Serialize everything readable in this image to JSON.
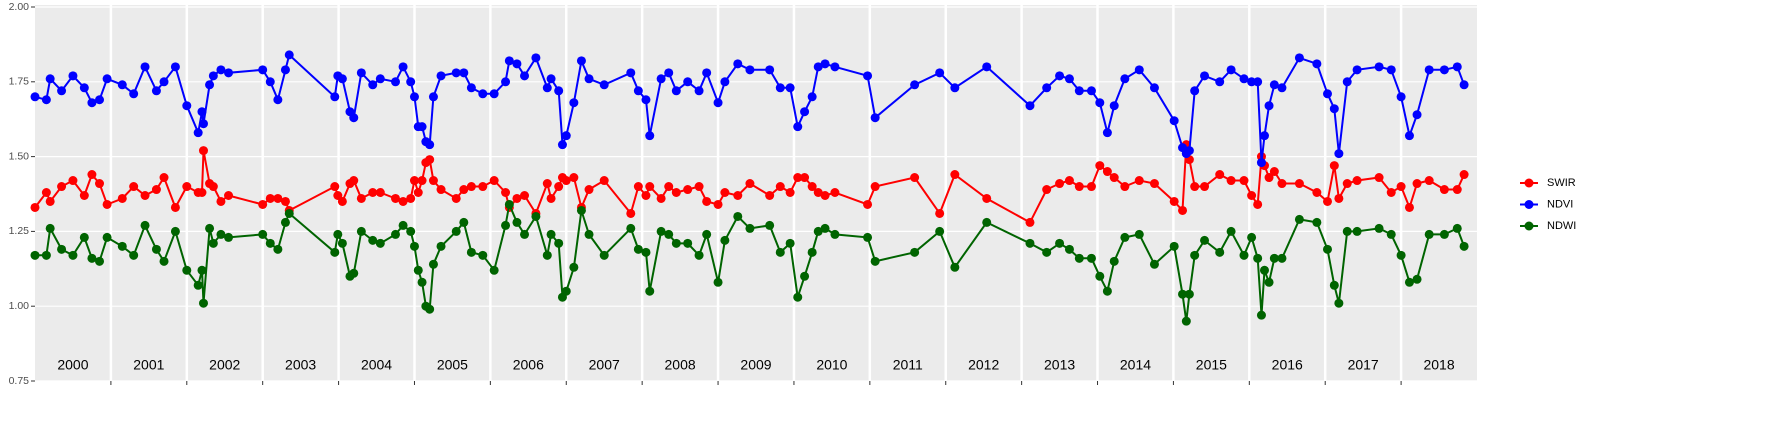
{
  "chart_data": {
    "type": "line",
    "x": [
      2000.0,
      2000.15,
      2000.2,
      2000.35,
      2000.5,
      2000.65,
      2000.75,
      2000.85,
      2000.95,
      2001.15,
      2001.3,
      2001.45,
      2001.6,
      2001.7,
      2001.85,
      2002.0,
      2002.15,
      2002.2,
      2002.22,
      2002.3,
      2002.35,
      2002.45,
      2002.55,
      2003.0,
      2003.1,
      2003.2,
      2003.3,
      2003.35,
      2003.95,
      2003.99,
      2004.05,
      2004.15,
      2004.2,
      2004.3,
      2004.45,
      2004.55,
      2004.75,
      2004.85,
      2004.95,
      2005.0,
      2005.05,
      2005.1,
      2005.15,
      2005.2,
      2005.25,
      2005.35,
      2005.55,
      2005.65,
      2005.75,
      2005.9,
      2006.05,
      2006.2,
      2006.25,
      2006.35,
      2006.45,
      2006.6,
      2006.75,
      2006.8,
      2006.9,
      2006.95,
      2007.0,
      2007.1,
      2007.2,
      2007.3,
      2007.5,
      2007.85,
      2007.95,
      2008.05,
      2008.1,
      2008.25,
      2008.35,
      2008.45,
      2008.6,
      2008.75,
      2008.85,
      2009.0,
      2009.09,
      2009.26,
      2009.42,
      2009.68,
      2009.82,
      2009.95,
      2010.05,
      2010.14,
      2010.24,
      2010.32,
      2010.41,
      2010.54,
      2010.97,
      2011.07,
      2011.59,
      2011.92,
      2012.12,
      2012.54,
      2013.11,
      2013.33,
      2013.5,
      2013.63,
      2013.76,
      2013.92,
      2014.03,
      2014.13,
      2014.22,
      2014.36,
      2014.55,
      2014.75,
      2015.01,
      2015.12,
      2015.17,
      2015.21,
      2015.28,
      2015.41,
      2015.61,
      2015.76,
      2015.93,
      2016.03,
      2016.11,
      2016.16,
      2016.2,
      2016.26,
      2016.33,
      2016.43,
      2016.66,
      2016.89,
      2017.03,
      2017.12,
      2017.18,
      2017.29,
      2017.42,
      2017.71,
      2017.87,
      2018.0,
      2018.11,
      2018.21,
      2018.37,
      2018.57,
      2018.74,
      2018.83
    ],
    "series": [
      {
        "name": "SWIR",
        "color": "#ff0000",
        "values": [
          1.33,
          1.38,
          1.35,
          1.4,
          1.42,
          1.37,
          1.44,
          1.41,
          1.34,
          1.36,
          1.4,
          1.37,
          1.39,
          1.43,
          1.33,
          1.4,
          1.38,
          1.38,
          1.52,
          1.41,
          1.4,
          1.35,
          1.37,
          1.34,
          1.36,
          1.36,
          1.35,
          1.32,
          1.4,
          1.37,
          1.35,
          1.41,
          1.42,
          1.36,
          1.38,
          1.38,
          1.36,
          1.35,
          1.36,
          1.42,
          1.38,
          1.42,
          1.48,
          1.49,
          1.42,
          1.39,
          1.36,
          1.39,
          1.4,
          1.4,
          1.42,
          1.38,
          1.33,
          1.36,
          1.37,
          1.31,
          1.41,
          1.36,
          1.4,
          1.43,
          1.42,
          1.43,
          1.33,
          1.39,
          1.42,
          1.31,
          1.4,
          1.37,
          1.4,
          1.36,
          1.4,
          1.38,
          1.39,
          1.4,
          1.35,
          1.34,
          1.38,
          1.37,
          1.41,
          1.37,
          1.4,
          1.38,
          1.43,
          1.43,
          1.4,
          1.38,
          1.37,
          1.38,
          1.34,
          1.4,
          1.43,
          1.31,
          1.44,
          1.36,
          1.28,
          1.39,
          1.41,
          1.42,
          1.4,
          1.4,
          1.47,
          1.45,
          1.43,
          1.4,
          1.42,
          1.41,
          1.35,
          1.32,
          1.54,
          1.49,
          1.4,
          1.4,
          1.44,
          1.42,
          1.42,
          1.37,
          1.34,
          1.5,
          1.47,
          1.43,
          1.45,
          1.41,
          1.41,
          1.38,
          1.35,
          1.47,
          1.36,
          1.41,
          1.42,
          1.43,
          1.38,
          1.4,
          1.33,
          1.41,
          1.42,
          1.39,
          1.39,
          1.44
        ]
      },
      {
        "name": "NDVI",
        "color": "#0000ff",
        "values": [
          1.7,
          1.69,
          1.76,
          1.72,
          1.77,
          1.73,
          1.68,
          1.69,
          1.76,
          1.74,
          1.71,
          1.8,
          1.72,
          1.75,
          1.8,
          1.67,
          1.58,
          1.65,
          1.61,
          1.74,
          1.77,
          1.79,
          1.78,
          1.79,
          1.75,
          1.69,
          1.79,
          1.84,
          1.7,
          1.77,
          1.76,
          1.65,
          1.63,
          1.78,
          1.74,
          1.76,
          1.75,
          1.8,
          1.75,
          1.7,
          1.6,
          1.6,
          1.55,
          1.54,
          1.7,
          1.77,
          1.78,
          1.78,
          1.73,
          1.71,
          1.71,
          1.75,
          1.82,
          1.81,
          1.77,
          1.83,
          1.73,
          1.76,
          1.72,
          1.54,
          1.57,
          1.68,
          1.82,
          1.76,
          1.74,
          1.78,
          1.72,
          1.69,
          1.57,
          1.76,
          1.78,
          1.72,
          1.75,
          1.72,
          1.78,
          1.68,
          1.75,
          1.81,
          1.79,
          1.79,
          1.73,
          1.73,
          1.6,
          1.65,
          1.7,
          1.8,
          1.81,
          1.8,
          1.77,
          1.63,
          1.74,
          1.78,
          1.73,
          1.8,
          1.67,
          1.73,
          1.77,
          1.76,
          1.72,
          1.72,
          1.68,
          1.58,
          1.67,
          1.76,
          1.79,
          1.73,
          1.62,
          1.53,
          1.51,
          1.52,
          1.72,
          1.77,
          1.75,
          1.79,
          1.76,
          1.75,
          1.75,
          1.48,
          1.57,
          1.67,
          1.74,
          1.73,
          1.83,
          1.81,
          1.71,
          1.66,
          1.51,
          1.75,
          1.79,
          1.8,
          1.79,
          1.7,
          1.57,
          1.64,
          1.79,
          1.79,
          1.8,
          1.74
        ]
      },
      {
        "name": "NDWI",
        "color": "#006400",
        "values": [
          1.17,
          1.17,
          1.26,
          1.19,
          1.17,
          1.23,
          1.16,
          1.15,
          1.23,
          1.2,
          1.17,
          1.27,
          1.19,
          1.15,
          1.25,
          1.12,
          1.07,
          1.12,
          1.01,
          1.26,
          1.21,
          1.24,
          1.23,
          1.24,
          1.21,
          1.19,
          1.28,
          1.31,
          1.18,
          1.24,
          1.21,
          1.1,
          1.11,
          1.25,
          1.22,
          1.21,
          1.24,
          1.27,
          1.25,
          1.2,
          1.12,
          1.08,
          1.0,
          0.99,
          1.14,
          1.2,
          1.25,
          1.28,
          1.18,
          1.17,
          1.12,
          1.27,
          1.34,
          1.28,
          1.24,
          1.3,
          1.17,
          1.24,
          1.21,
          1.03,
          1.05,
          1.13,
          1.32,
          1.24,
          1.17,
          1.26,
          1.19,
          1.18,
          1.05,
          1.25,
          1.24,
          1.21,
          1.21,
          1.17,
          1.24,
          1.08,
          1.22,
          1.3,
          1.26,
          1.27,
          1.18,
          1.21,
          1.03,
          1.1,
          1.18,
          1.25,
          1.26,
          1.24,
          1.23,
          1.15,
          1.18,
          1.25,
          1.13,
          1.28,
          1.21,
          1.18,
          1.21,
          1.19,
          1.16,
          1.16,
          1.1,
          1.05,
          1.15,
          1.23,
          1.24,
          1.14,
          1.2,
          1.04,
          0.95,
          1.04,
          1.17,
          1.22,
          1.18,
          1.25,
          1.17,
          1.23,
          1.16,
          0.97,
          1.12,
          1.08,
          1.16,
          1.16,
          1.29,
          1.28,
          1.19,
          1.07,
          1.01,
          1.25,
          1.25,
          1.26,
          1.24,
          1.17,
          1.08,
          1.09,
          1.24,
          1.24,
          1.26,
          1.2
        ]
      }
    ],
    "xlim": [
      2000,
      2019
    ],
    "year_breaks": [
      2001,
      2002,
      2003,
      2004,
      2005,
      2006,
      2007,
      2008,
      2009,
      2010,
      2011,
      2012,
      2013,
      2014,
      2015,
      2016,
      2017,
      2018
    ],
    "year_labels": [
      {
        "value": 2000.5,
        "label": "2000"
      },
      {
        "value": 2001.5,
        "label": "2001"
      },
      {
        "value": 2002.5,
        "label": "2002"
      },
      {
        "value": 2003.5,
        "label": "2003"
      },
      {
        "value": 2004.5,
        "label": "2004"
      },
      {
        "value": 2005.5,
        "label": "2005"
      },
      {
        "value": 2006.5,
        "label": "2006"
      },
      {
        "value": 2007.5,
        "label": "2007"
      },
      {
        "value": 2008.5,
        "label": "2008"
      },
      {
        "value": 2009.5,
        "label": "2009"
      },
      {
        "value": 2010.5,
        "label": "2010"
      },
      {
        "value": 2011.5,
        "label": "2011"
      },
      {
        "value": 2012.5,
        "label": "2012"
      },
      {
        "value": 2013.5,
        "label": "2013"
      },
      {
        "value": 2014.5,
        "label": "2014"
      },
      {
        "value": 2015.5,
        "label": "2015"
      },
      {
        "value": 2016.5,
        "label": "2016"
      },
      {
        "value": 2017.5,
        "label": "2017"
      },
      {
        "value": 2018.5,
        "label": "2018"
      }
    ],
    "ylim": [
      0.75,
      2.0
    ],
    "yticks": [
      {
        "value": 0.75,
        "label": "0.75"
      },
      {
        "value": 1.0,
        "label": "1.00"
      },
      {
        "value": 1.25,
        "label": "1.25"
      },
      {
        "value": 1.5,
        "label": "1.50"
      },
      {
        "value": 1.75,
        "label": "1.75"
      },
      {
        "value": 2.0,
        "label": "2.00"
      }
    ],
    "grid": true,
    "legend": "right"
  }
}
